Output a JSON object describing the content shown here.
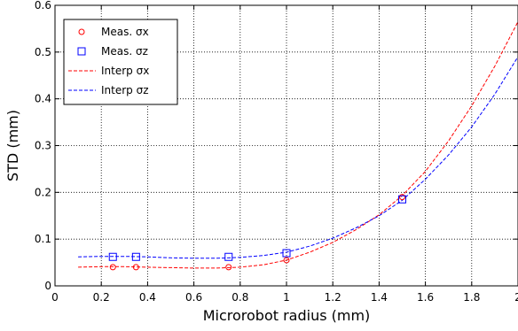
{
  "chart_data": {
    "type": "scatter",
    "title": "",
    "xlabel": "Microrobot radius (mm)",
    "ylabel": "STD (mm)",
    "xlim": [
      0,
      2
    ],
    "ylim": [
      0,
      0.6
    ],
    "xticks": [
      0,
      0.2,
      0.4,
      0.6,
      0.8,
      1,
      1.2,
      1.4,
      1.6,
      1.8,
      2
    ],
    "xtick_labels": [
      "0",
      "0.2",
      "0.4",
      "0.6",
      "0.8",
      "1",
      "1.2",
      "1.4",
      "1.6",
      "1.8",
      "2"
    ],
    "yticks": [
      0,
      0.1,
      0.2,
      0.3,
      0.4,
      0.5,
      0.6
    ],
    "ytick_labels": [
      "0",
      "0.1",
      "0.2",
      "0.3",
      "0.4",
      "0.5",
      "0.6"
    ],
    "grid": true,
    "legend_position": "top-left",
    "series": [
      {
        "name": "Meas. σx",
        "kind": "marker",
        "marker": "circle",
        "color": "#ff0000",
        "x": [
          0.25,
          0.35,
          0.75,
          1.0,
          1.5
        ],
        "y": [
          0.04,
          0.04,
          0.04,
          0.055,
          0.19
        ]
      },
      {
        "name": "Meas. σz",
        "kind": "marker",
        "marker": "square",
        "color": "#0000ff",
        "x": [
          0.25,
          0.35,
          0.75,
          1.0,
          1.5
        ],
        "y": [
          0.062,
          0.062,
          0.062,
          0.07,
          0.185
        ]
      },
      {
        "name": "Interp σx",
        "kind": "dashed-line",
        "color": "#ff0000",
        "x": [
          0.1,
          0.2,
          0.3,
          0.4,
          0.5,
          0.6,
          0.7,
          0.8,
          0.9,
          1.0,
          1.1,
          1.2,
          1.3,
          1.4,
          1.5,
          1.6,
          1.7,
          1.8,
          1.9,
          2.0
        ],
        "y": [
          0.04,
          0.041,
          0.041,
          0.04,
          0.039,
          0.038,
          0.038,
          0.04,
          0.045,
          0.055,
          0.072,
          0.093,
          0.12,
          0.152,
          0.193,
          0.245,
          0.31,
          0.385,
          0.47,
          0.565
        ]
      },
      {
        "name": "Interp σz",
        "kind": "dashed-line",
        "color": "#0000ff",
        "x": [
          0.1,
          0.2,
          0.3,
          0.4,
          0.5,
          0.6,
          0.7,
          0.8,
          0.9,
          1.0,
          1.1,
          1.2,
          1.3,
          1.4,
          1.5,
          1.6,
          1.7,
          1.8,
          1.9,
          2.0
        ],
        "y": [
          0.062,
          0.063,
          0.063,
          0.062,
          0.06,
          0.059,
          0.059,
          0.061,
          0.065,
          0.072,
          0.085,
          0.102,
          0.124,
          0.15,
          0.183,
          0.228,
          0.28,
          0.34,
          0.41,
          0.49
        ]
      }
    ]
  }
}
